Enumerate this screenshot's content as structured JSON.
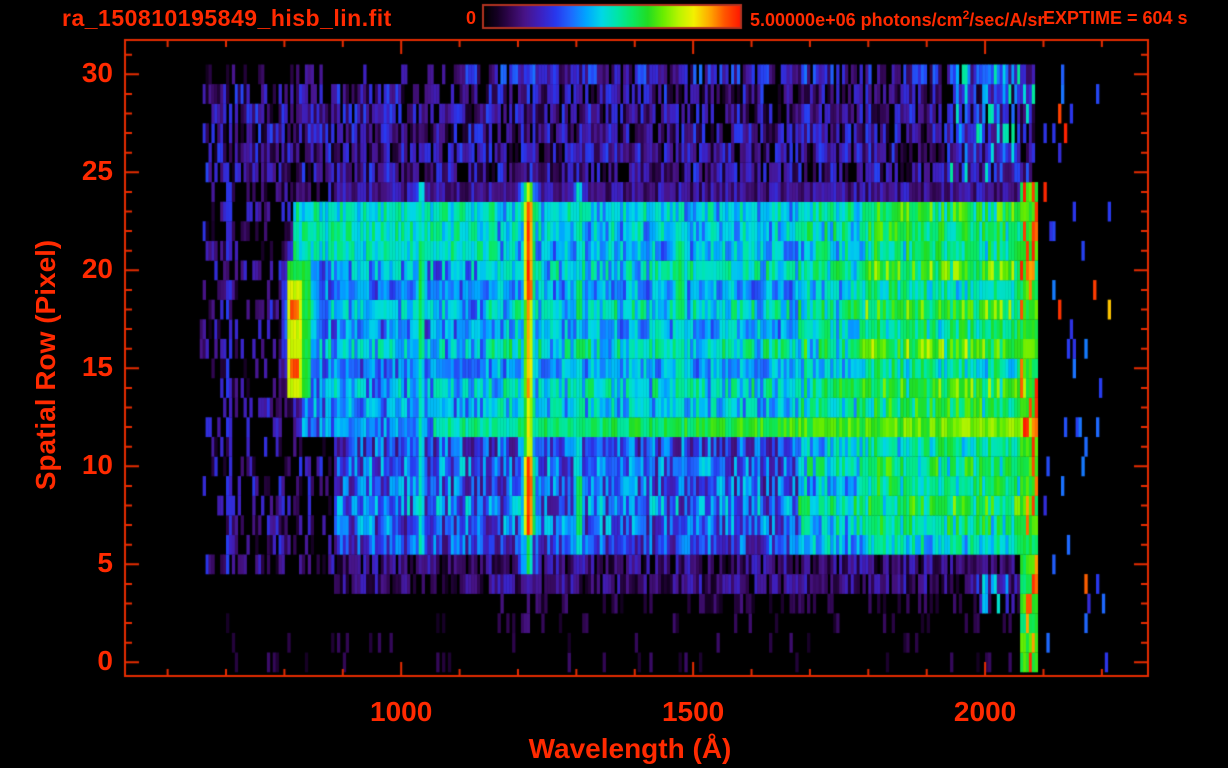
{
  "header": {
    "filename": "ra_150810195849_hisb_lin.fit",
    "exptime": "EXPTIME = 604 s",
    "colorbar": {
      "min_label": "0",
      "max_value": "5.00000e+06",
      "units_pre": " photons/cm",
      "units_sup": "2",
      "units_post": "/sec/A/sr"
    }
  },
  "colors": {
    "text": "#ff2a00",
    "axis": "#e62c00",
    "frame": "#b23220",
    "background": "#000000"
  },
  "chart_data": {
    "type": "heatmap",
    "title": "ra_150810195849_hisb_lin.fit",
    "xlabel": "Wavelength (Å)",
    "ylabel": "Spatial Row (Pixel)",
    "x_range": [
      527,
      2279
    ],
    "y_range": [
      -0.7,
      31.75
    ],
    "x_ticks": [
      {
        "v": 1000,
        "label": "1000"
      },
      {
        "v": 1500,
        "label": "1500"
      },
      {
        "v": 2000,
        "label": "2000"
      }
    ],
    "x_minor_step": 100,
    "y_ticks": [
      {
        "v": 0,
        "label": "0"
      },
      {
        "v": 5,
        "label": "5"
      },
      {
        "v": 10,
        "label": "10"
      },
      {
        "v": 15,
        "label": "15"
      },
      {
        "v": 20,
        "label": "20"
      },
      {
        "v": 25,
        "label": "25"
      },
      {
        "v": 30,
        "label": "30"
      }
    ],
    "y_minor_step": 1,
    "grid": false,
    "legend_position": "top-colorbar",
    "scale": {
      "min": 0,
      "max": 5000000,
      "units": "photons/cm2/sec/A/sr"
    },
    "colormap": [
      [
        0.0,
        "#000000"
      ],
      [
        0.05,
        "#140022"
      ],
      [
        0.1,
        "#300650"
      ],
      [
        0.16,
        "#481488"
      ],
      [
        0.22,
        "#3d20c0"
      ],
      [
        0.28,
        "#2838ee"
      ],
      [
        0.34,
        "#1e6aff"
      ],
      [
        0.4,
        "#00a6ff"
      ],
      [
        0.46,
        "#00d8e6"
      ],
      [
        0.52,
        "#00e6a8"
      ],
      [
        0.58,
        "#0ae862"
      ],
      [
        0.64,
        "#22dd22"
      ],
      [
        0.7,
        "#6aee00"
      ],
      [
        0.76,
        "#b8f400"
      ],
      [
        0.82,
        "#f4f000"
      ],
      [
        0.88,
        "#ffaa00"
      ],
      [
        0.94,
        "#ff5500"
      ],
      [
        1.0,
        "#ff1a00"
      ]
    ],
    "data_extent": {
      "wl": [
        650,
        2215
      ],
      "rows": [
        0,
        30
      ]
    },
    "row_gain": [
      0.45,
      0.5,
      0.6,
      0.7,
      0.8,
      0.85,
      0.9,
      1.0,
      1.1,
      1.0,
      1.05,
      0.95,
      1.0,
      1.05,
      1.15,
      0.95,
      1.2,
      1.0,
      1.15,
      0.95,
      1.15,
      1.0,
      1.05,
      1.1,
      0.55,
      1,
      1,
      1,
      1,
      1,
      1
    ],
    "regions": [
      {
        "name": "upper-noise",
        "wl": [
          660,
          2085
        ],
        "rows": [
          24.5,
          29.5
        ],
        "base": 0.15,
        "jitter": 0.15,
        "density": 0.92
      },
      {
        "name": "row30-left",
        "wl": [
          660,
          1100
        ],
        "rows": [
          29.5,
          30.49
        ],
        "base": 0.12,
        "jitter": 0.1,
        "density": 0.3
      },
      {
        "name": "row30-right",
        "wl": [
          1100,
          2085
        ],
        "rows": [
          29.5,
          30.49
        ],
        "base": 0.22,
        "jitter": 0.13,
        "density": 0.85
      },
      {
        "name": "topright-green",
        "wl": [
          1940,
          2085
        ],
        "rows": [
          24.5,
          30.49
        ],
        "base": 0.32,
        "jitter": 0.22,
        "density": 0.5
      },
      {
        "name": "left-sparse",
        "wl": [
          655,
          885
        ],
        "rows": [
          4.5,
          24.5
        ],
        "base": 0.12,
        "jitter": 0.16,
        "density": 0.5
      },
      {
        "name": "mid-blue",
        "wl": [
          885,
          2085
        ],
        "rows": [
          6.0,
          24.49
        ],
        "base": 0.3,
        "jitter": 0.16,
        "density": 1.0,
        "rowGain": true
      },
      {
        "name": "cyan-wash",
        "wl": [
          1145,
          2085
        ],
        "rows": [
          12.0,
          23.6
        ],
        "base": 0.4,
        "jitter": 0.13,
        "density": 1.0,
        "rowGain": true
      },
      {
        "name": "top-arm",
        "wl": [
          815,
          1165
        ],
        "rows": [
          20.2,
          23.3
        ],
        "base": 0.5,
        "jitter": 0.1,
        "density": 1.0
      },
      {
        "name": "arm-fill",
        "wl": [
          830,
          1165
        ],
        "rows": [
          11.6,
          20.2
        ],
        "base": 0.33,
        "jitter": 0.13,
        "density": 1.0,
        "rowGain": true
      },
      {
        "name": "pre-green",
        "wl": [
          1680,
          2085
        ],
        "rows": [
          6.0,
          23.6
        ],
        "base": 0.44,
        "jitter": 0.16,
        "density": 1.0,
        "rowGain": true
      },
      {
        "name": "right-green",
        "wl": [
          1790,
          2085
        ],
        "rows": [
          6.0,
          23.6
        ],
        "base": 0.52,
        "jitter": 0.15,
        "density": 1.0,
        "rowGain": true
      },
      {
        "name": "bottom-purple",
        "wl": [
          885,
          2085
        ],
        "rows": [
          4.0,
          6.0
        ],
        "base": 0.14,
        "jitter": 0.1,
        "density": 0.85
      },
      {
        "name": "bottom-sparse",
        "wl": [
          1150,
          2085
        ],
        "rows": [
          2.5,
          4.0
        ],
        "base": 0.09,
        "jitter": 0.06,
        "density": 0.3
      },
      {
        "name": "floor-dashes",
        "wl": [
          700,
          2085
        ],
        "rows": [
          -0.5,
          2.5
        ],
        "base": 0.08,
        "jitter": 0.05,
        "density": 0.1
      },
      {
        "name": "corner-cluster",
        "wl": [
          1985,
          2055
        ],
        "rows": [
          2.5,
          4.5
        ],
        "base": 0.35,
        "jitter": 0.15,
        "density": 0.45
      },
      {
        "name": "post-edge-spikes",
        "wl": [
          2085,
          2215
        ],
        "rows": [
          -0.5,
          30.49
        ],
        "type": "spike",
        "density": 0.06
      }
    ],
    "hband": {
      "name": "source-continuum-row",
      "rows": [
        11.6,
        12.9
      ],
      "wl": [
        1055,
        2085
      ],
      "v0": 0.52,
      "v1": 0.72,
      "jitter": 0.07
    },
    "vlines": [
      {
        "name": "faint-line-700",
        "c": 702,
        "hw": 7,
        "rows": [
          4.5,
          25.0
        ],
        "peak": 0.28,
        "density": 0.7
      },
      {
        "name": "line-1031",
        "c": 1031,
        "hw": 8,
        "rows": [
          5.5,
          24.2
        ],
        "peak": 0.52,
        "hot": [
          [
            16,
            21,
            0.1
          ]
        ]
      },
      {
        "name": "lyman-alpha-1216",
        "c": 1216,
        "hw": 11,
        "wing": 22,
        "rows": [
          4.6,
          24.3
        ],
        "peak": 0.88,
        "wingPeak": 0.5,
        "hot": [
          [
            19.0,
            23.3,
            0.1
          ],
          [
            7.0,
            10.8,
            0.1
          ],
          [
            23.3,
            24.3,
            -0.12
          ],
          [
            4.6,
            6.3,
            -0.28
          ],
          [
            10.8,
            13.0,
            -0.06
          ]
        ],
        "trail": {
          "rows": [
            -0.5,
            4.6
          ],
          "density": 0.45,
          "v": 0.12
        }
      },
      {
        "name": "line-1302",
        "c": 1302,
        "hw": 9,
        "rows": [
          5.8,
          24.2
        ],
        "peak": 0.5,
        "hot": [
          [
            7.0,
            9.5,
            0.12
          ],
          [
            17.5,
            19.5,
            0.12
          ]
        ]
      },
      {
        "name": "line-1392",
        "c": 1392,
        "hw": 8,
        "rows": [
          8.0,
          23.0
        ],
        "peak": 0.45
      },
      {
        "name": "line-1475",
        "c": 1475,
        "hw": 16,
        "rows": [
          11.5,
          22.5
        ],
        "peak": 0.5,
        "hot": [
          [
            18,
            21,
            0.1
          ],
          [
            13.5,
            15,
            0.06
          ]
        ]
      },
      {
        "name": "line-1812",
        "c": 1812,
        "hw": 11,
        "rows": [
          6.0,
          23.5
        ],
        "peak": 0.56
      }
    ],
    "blob": {
      "name": "bright-knot-820",
      "outerWl": [
        793,
        868
      ],
      "outerRows": [
        12.8,
        22.5
      ],
      "haloPeak": 0.5,
      "coreWl": [
        801,
        844
      ],
      "coreRows": [
        13.4,
        20.6
      ],
      "corePeak": 0.62,
      "yellowWl": [
        804,
        828
      ],
      "yellowRows": [
        14.0,
        19.6
      ],
      "yellowPeak": 0.78,
      "hotRows": [
        [
          14.8,
          15.7
        ],
        [
          17.7,
          18.6
        ]
      ],
      "hotWl": [
        806,
        822
      ],
      "hotBoost": 0.16
    },
    "edge_column": {
      "name": "detector-edge-2070",
      "wl": [
        2056,
        2086
      ],
      "rows": [
        -0.5,
        24.5
      ],
      "greenBase": 0.55,
      "spikeProb": 0.28,
      "spikeV": 0.88
    }
  }
}
